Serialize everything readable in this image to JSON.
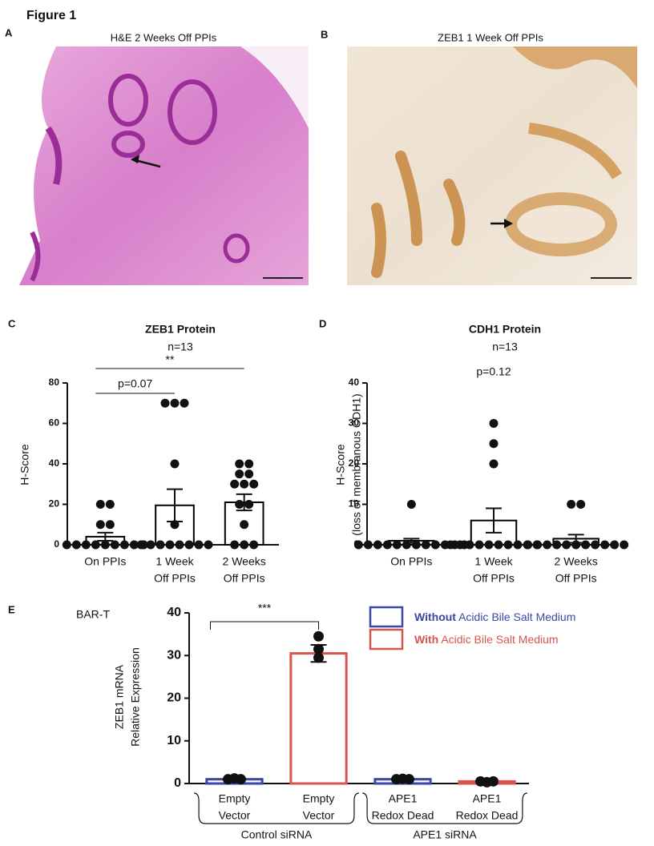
{
  "figure": {
    "title": "Figure 1"
  },
  "images": [
    {
      "letter": "A",
      "title": "H&E 2 Weeks Off PPIs"
    },
    {
      "letter": "B",
      "title": "ZEB1 1 Week Off PPIs"
    }
  ],
  "panel_letters": [
    "C",
    "D",
    "E"
  ],
  "chart_data": [
    {
      "type": "bar",
      "title": "ZEB1 Protein",
      "subtitle": "n=13",
      "y_label": [
        "H-Score"
      ],
      "categories": [
        [
          "On PPIs"
        ],
        [
          "1 Week",
          "Off PPIs"
        ],
        [
          "2 Weeks",
          "Off PPIs"
        ]
      ],
      "values": [
        4,
        19.5,
        21
      ],
      "errors": [
        2,
        8,
        4
      ],
      "points": [
        [
          20,
          20,
          10,
          10,
          0,
          0,
          0,
          0,
          0,
          0,
          0,
          0,
          0
        ],
        [
          70,
          70,
          70,
          40,
          10,
          0,
          0,
          0,
          0,
          0,
          0,
          0,
          0
        ],
        [
          40,
          40,
          35,
          35,
          30,
          30,
          30,
          20,
          20,
          10,
          0,
          0,
          0
        ]
      ],
      "color": "#000000",
      "ylim": [
        0,
        80
      ],
      "yticks": [
        0,
        20,
        40,
        60,
        80
      ],
      "annotations": [
        {
          "text": "p=0.07",
          "between": [
            0,
            1
          ]
        },
        {
          "text": "**",
          "between": [
            0,
            2
          ]
        }
      ]
    },
    {
      "type": "bar",
      "title": "CDH1 Protein",
      "subtitle": "n=13",
      "y_label": [
        "H-Score",
        "(loss of membranous CDH1)"
      ],
      "categories": [
        [
          "On PPIs"
        ],
        [
          "1 Week",
          "Off PPIs"
        ],
        [
          "2 Weeks",
          "Off PPIs"
        ]
      ],
      "values": [
        1,
        6,
        1.5
      ],
      "errors": [
        0.5,
        3,
        1
      ],
      "points": [
        [
          10,
          0,
          0,
          0,
          0,
          0,
          0,
          0,
          0,
          0,
          0,
          0,
          0
        ],
        [
          30,
          25,
          20,
          0,
          0,
          0,
          0,
          0,
          0,
          0,
          0,
          0,
          0
        ],
        [
          10,
          10,
          0,
          0,
          0,
          0,
          0,
          0,
          0,
          0,
          0,
          0,
          0
        ]
      ],
      "color": "#000000",
      "ylim": [
        0,
        40
      ],
      "yticks": [
        0,
        10,
        20,
        30,
        40
      ],
      "annotations": [
        {
          "text": "p=0.12"
        }
      ]
    },
    {
      "type": "bar",
      "title": "BAR-T",
      "y_label": [
        "ZEB1 mRNA",
        "Relative Expression"
      ],
      "categories": [
        [
          "Empty",
          "Vector"
        ],
        [
          "Empty",
          "Vector"
        ],
        [
          "APE1",
          "Redox Dead"
        ],
        [
          "APE1",
          "Redox Dead"
        ]
      ],
      "groups": [
        {
          "label": "Control siRNA",
          "between": [
            0,
            1
          ]
        },
        {
          "label": "APE1 siRNA",
          "between": [
            2,
            3
          ]
        }
      ],
      "series": [
        {
          "name": "Without Acidic Bile Salt Medium",
          "color": "#3b47a6",
          "values": [
            1,
            null,
            1,
            null
          ],
          "errors": [
            0.15,
            null,
            0.1,
            null
          ],
          "points": [
            [
              1.2,
              1,
              1
            ],
            null,
            [
              1.1,
              1,
              1
            ],
            null
          ]
        },
        {
          "name": "With Acidic Bile Salt Medium",
          "color": "#d9534f",
          "values": [
            null,
            30.5,
            null,
            0.5
          ],
          "errors": [
            null,
            2,
            null,
            0.2
          ],
          "points": [
            null,
            [
              34.5,
              31.5,
              29.5
            ],
            null,
            [
              0.5,
              0.3,
              0.5
            ]
          ]
        }
      ],
      "ylim": [
        0,
        40
      ],
      "yticks": [
        0,
        10,
        20,
        30,
        40
      ],
      "annotations": [
        {
          "text": "***",
          "between": [
            0,
            1
          ]
        }
      ],
      "legend": "upper right"
    }
  ]
}
